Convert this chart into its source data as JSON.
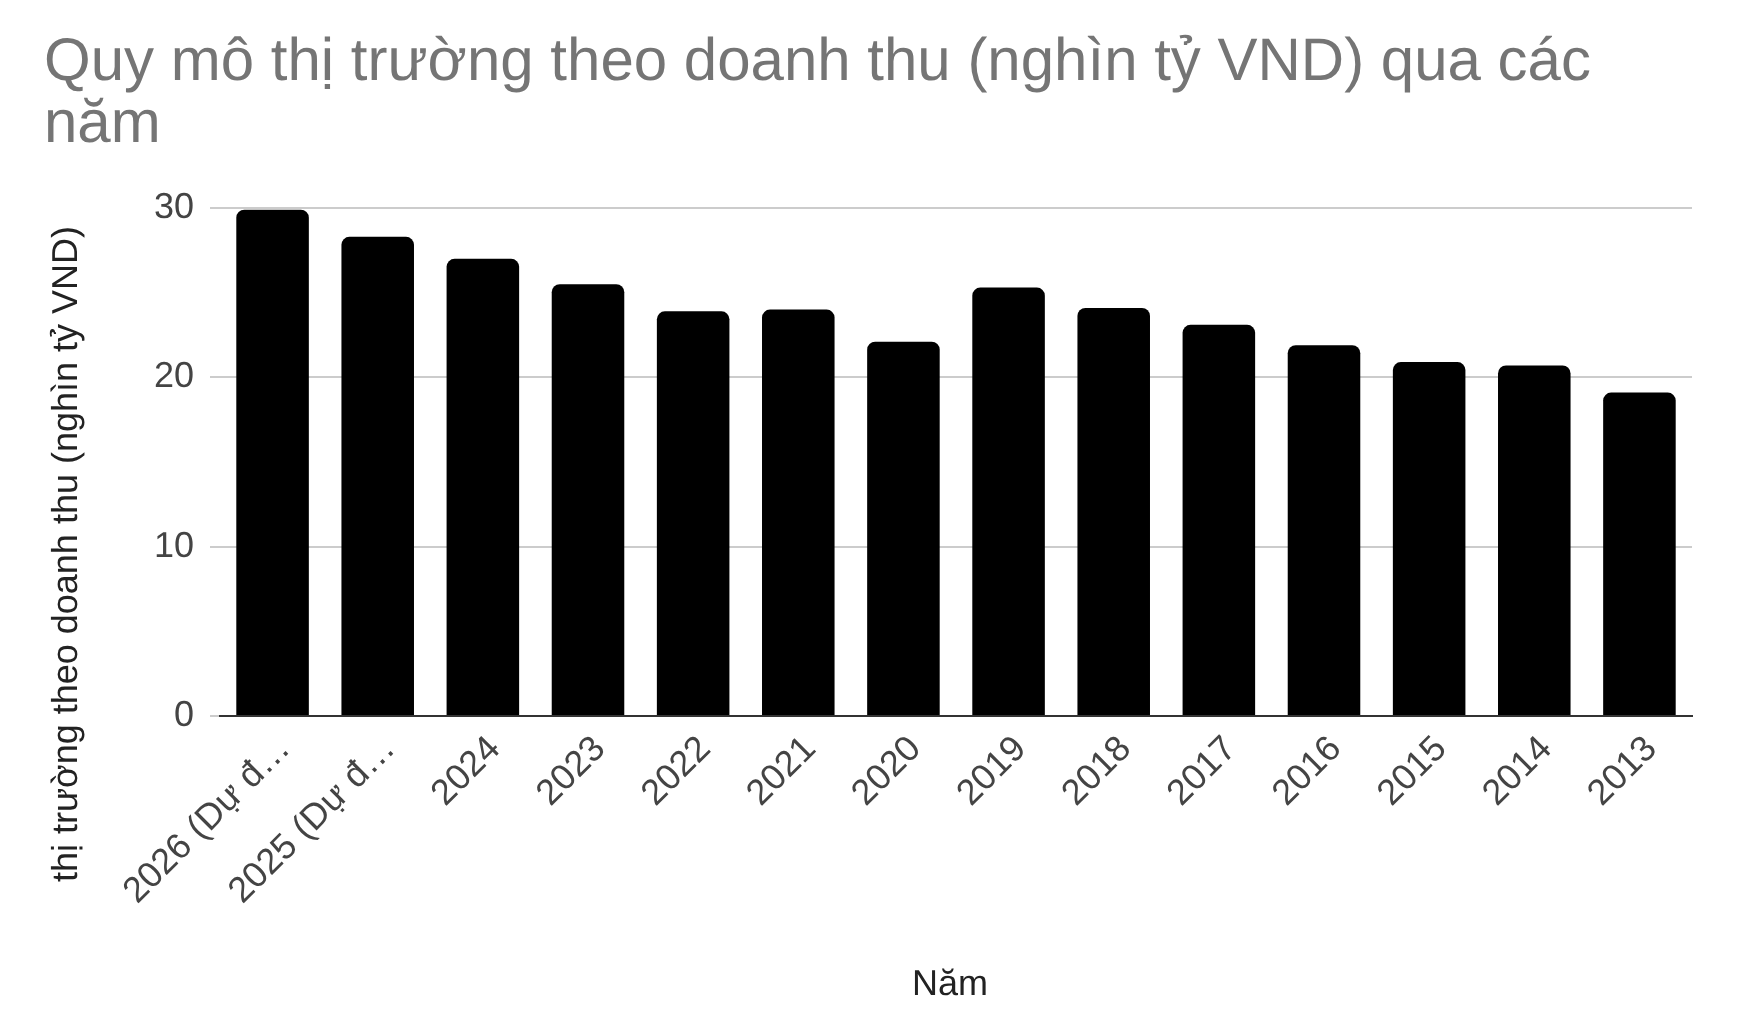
{
  "chart_data": {
    "type": "bar",
    "title": "Quy mô thị trường theo doanh thu (nghìn tỷ VND) qua các năm",
    "xlabel": "Năm",
    "ylabel": "thị trường theo doanh thu (nghìn tỷ VND)",
    "categories": [
      "2026 (Dự đ…",
      "2025 (Dự đ…",
      "2024",
      "2023",
      "2022",
      "2021",
      "2020",
      "2019",
      "2018",
      "2017",
      "2016",
      "2015",
      "2014",
      "2013"
    ],
    "values": [
      29.9,
      28.3,
      27.0,
      25.5,
      23.9,
      24.0,
      22.1,
      25.3,
      24.1,
      23.1,
      21.9,
      20.9,
      20.7,
      19.1
    ],
    "color": "#000000",
    "ylim": [
      0,
      30
    ],
    "yticks": [
      0,
      10,
      20,
      30
    ],
    "grid": "y"
  }
}
